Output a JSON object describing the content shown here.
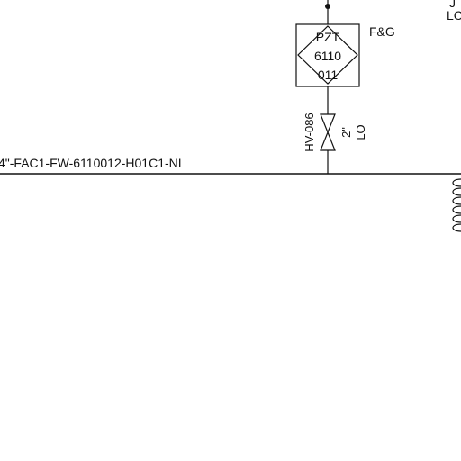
{
  "instrument": {
    "tag_line_1": "PZT",
    "tag_line_2": "6110",
    "tag_line_3": "011",
    "service_label": "F&G"
  },
  "valve": {
    "tag": "HV-086",
    "size": "2\"",
    "position": "LO"
  },
  "pipeline": {
    "label": "4\"-FAC1-FW-6110012-H01C1-NI"
  },
  "corner_fragment": {
    "upper": "J",
    "lower": "LC"
  }
}
